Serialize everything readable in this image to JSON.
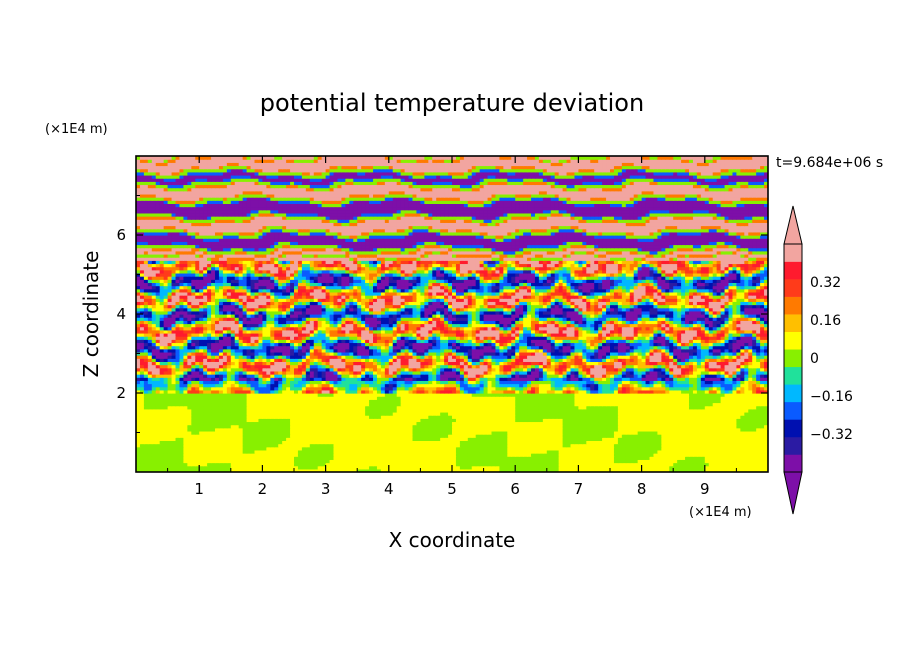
{
  "chart_data": {
    "type": "heatmap",
    "title": "potential temperature deviation",
    "xlabel": "X coordinate",
    "ylabel": "Z coordinate",
    "x_unit": "(×1E4 m)",
    "y_unit": "(×1E4 m)",
    "time_label": "t=9.684e+06 s",
    "xlim": [
      0,
      10
    ],
    "ylim": [
      0,
      8
    ],
    "x_ticks": [
      1,
      2,
      3,
      4,
      5,
      6,
      7,
      8,
      9
    ],
    "x_tick_labels": [
      "1",
      "2",
      "3",
      "4",
      "5",
      "6",
      "7",
      "8",
      "9"
    ],
    "y_ticks": [
      2,
      4,
      6
    ],
    "y_tick_labels": [
      "2",
      "4",
      "6"
    ],
    "grid": false,
    "colorbar": {
      "placement": "right",
      "levels": [
        -0.48,
        -0.4,
        -0.32,
        -0.24,
        -0.16,
        -0.08,
        0,
        0.08,
        0.16,
        0.24,
        0.32,
        0.4,
        0.48
      ],
      "tick_values": [
        0.32,
        0.16,
        0,
        -0.16,
        -0.32
      ],
      "tick_labels": [
        "0.32",
        "0.16",
        "0",
        "−0.16",
        "−0.32"
      ],
      "colors_low_to_high": [
        "#7d0fa8",
        "#2b1ba3",
        "#0010b0",
        "#0a5bff",
        "#00b8ff",
        "#20e19b",
        "#88f000",
        "#ffff00",
        "#ffbf00",
        "#ff7a00",
        "#ff3b1a",
        "#ff1b2e",
        "#f2a5a0"
      ],
      "extend_low_color": "#7d0fa8",
      "extend_high_color": "#f2a5a0"
    },
    "bands": [
      {
        "z_range": [
          0,
          2.0
        ],
        "pattern": "green mix, values near 0 to +0.08"
      },
      {
        "z_range": [
          2.0,
          5.4
        ],
        "pattern": "turbulent mix, full range −0.48 to +0.48"
      },
      {
        "z_range": [
          5.4,
          8.0
        ],
        "pattern": "alternating layers of −0.48 and +0.48"
      }
    ],
    "layered_region_z_edges": [
      5.4,
      5.65,
      6.05,
      6.45,
      6.9,
      7.3,
      7.6,
      8.0
    ],
    "layered_region_values": [
      0.48,
      -0.48,
      0.48,
      -0.48,
      0.48,
      -0.48,
      0.48
    ]
  }
}
